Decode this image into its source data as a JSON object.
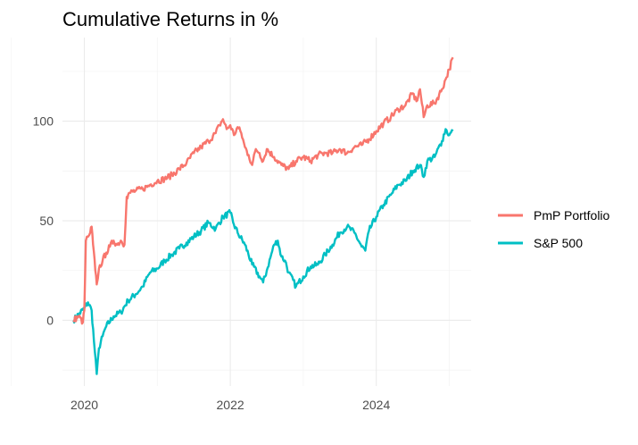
{
  "chart_data": {
    "type": "line",
    "title": "Cumulative Returns in %",
    "xlabel": "",
    "ylabel": "",
    "xlim": [
      2019.7,
      2025.3
    ],
    "ylim": [
      -33,
      142
    ],
    "x_ticks": [
      2020,
      2022,
      2024
    ],
    "x_tick_labels": [
      "2020",
      "2022",
      "2024"
    ],
    "y_ticks": [
      0,
      50,
      100
    ],
    "y_tick_labels": [
      "0",
      "50",
      "100"
    ],
    "grid": true,
    "legend_position": "right",
    "series": [
      {
        "name": "PmP Portfolio",
        "color": "#F8766D",
        "x": [
          2019.85,
          2019.92,
          2019.98,
          2020.0,
          2020.02,
          2020.05,
          2020.08,
          2020.1,
          2020.12,
          2020.15,
          2020.17,
          2020.2,
          2020.25,
          2020.3,
          2020.35,
          2020.4,
          2020.45,
          2020.5,
          2020.55,
          2020.58,
          2020.6,
          2020.62,
          2020.7,
          2020.8,
          2020.9,
          2021.0,
          2021.1,
          2021.2,
          2021.3,
          2021.4,
          2021.5,
          2021.6,
          2021.7,
          2021.8,
          2021.85,
          2021.9,
          2021.95,
          2022.0,
          2022.05,
          2022.1,
          2022.15,
          2022.2,
          2022.25,
          2022.3,
          2022.35,
          2022.4,
          2022.45,
          2022.5,
          2022.6,
          2022.7,
          2022.8,
          2022.9,
          2023.0,
          2023.1,
          2023.2,
          2023.3,
          2023.4,
          2023.5,
          2023.6,
          2023.7,
          2023.8,
          2023.9,
          2024.0,
          2024.1,
          2024.2,
          2024.3,
          2024.4,
          2024.5,
          2024.55,
          2024.6,
          2024.65,
          2024.7,
          2024.8,
          2024.9,
          2024.95,
          2025.0,
          2025.05
        ],
        "values": [
          0,
          2,
          -1,
          5,
          40,
          42,
          44,
          47,
          38,
          25,
          18,
          26,
          30,
          34,
          37,
          40,
          38,
          40,
          38,
          62,
          63,
          64,
          65,
          66,
          68,
          70,
          71,
          73,
          76,
          79,
          84,
          87,
          90,
          94,
          98,
          101,
          96,
          98,
          93,
          97,
          94,
          87,
          83,
          78,
          86,
          84,
          80,
          86,
          82,
          78,
          76,
          80,
          82,
          80,
          83,
          84,
          84,
          86,
          84,
          87,
          88,
          91,
          95,
          99,
          102,
          106,
          108,
          114,
          110,
          116,
          102,
          108,
          109,
          116,
          121,
          126,
          132
        ]
      },
      {
        "name": "S&P 500",
        "color": "#00BFC4",
        "x": [
          2019.85,
          2019.92,
          2020.0,
          2020.05,
          2020.1,
          2020.13,
          2020.17,
          2020.2,
          2020.25,
          2020.3,
          2020.4,
          2020.5,
          2020.6,
          2020.7,
          2020.8,
          2020.9,
          2021.0,
          2021.1,
          2021.2,
          2021.3,
          2021.4,
          2021.5,
          2021.6,
          2021.7,
          2021.8,
          2021.9,
          2022.0,
          2022.05,
          2022.1,
          2022.2,
          2022.3,
          2022.4,
          2022.45,
          2022.5,
          2022.6,
          2022.65,
          2022.7,
          2022.75,
          2022.8,
          2022.9,
          2023.0,
          2023.1,
          2023.2,
          2023.3,
          2023.4,
          2023.5,
          2023.6,
          2023.7,
          2023.8,
          2023.85,
          2023.9,
          2024.0,
          2024.1,
          2024.2,
          2024.3,
          2024.4,
          2024.5,
          2024.6,
          2024.65,
          2024.7,
          2024.8,
          2024.9,
          2024.95,
          2025.0,
          2025.05
        ],
        "values": [
          0,
          3,
          6,
          9,
          5,
          -10,
          -27,
          -14,
          -8,
          -3,
          2,
          4,
          10,
          13,
          17,
          24,
          26,
          30,
          33,
          36,
          39,
          42,
          45,
          49,
          46,
          52,
          54,
          48,
          44,
          38,
          28,
          22,
          19,
          25,
          38,
          40,
          32,
          30,
          24,
          17,
          22,
          27,
          28,
          33,
          38,
          44,
          47,
          44,
          37,
          35,
          45,
          52,
          58,
          63,
          68,
          70,
          75,
          78,
          72,
          80,
          82,
          90,
          96,
          93,
          95
        ]
      }
    ]
  }
}
